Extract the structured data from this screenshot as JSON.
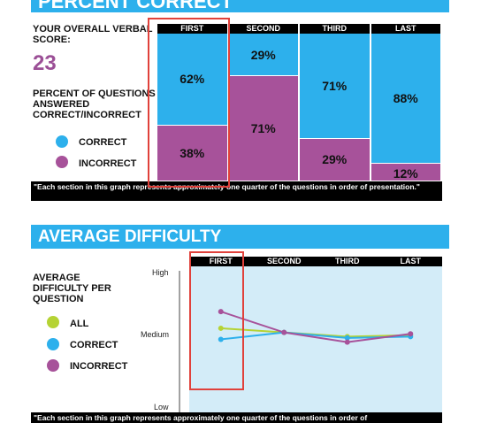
{
  "percent_correct": {
    "banner_title": "PERCENT CORRECT",
    "score_label": "YOUR OVERALL VERBAL SCORE:",
    "score_value": "23",
    "subtitle": "PERCENT OF QUESTIONS ANSWERED CORRECT/INCORRECT",
    "legend": [
      {
        "label": "CORRECT",
        "color": "#2db0ec"
      },
      {
        "label": "INCORRECT",
        "color": "#a7529a"
      }
    ],
    "footnote": "\"Each section in this graph represents approximately one quarter of the questions in order of presentation.\""
  },
  "average_difficulty": {
    "banner_title": "AVERAGE DIFFICULTY",
    "subtitle": "AVERAGE DIFFICULTY PER QUESTION",
    "legend": [
      {
        "label": "ALL",
        "color": "#b5d334"
      },
      {
        "label": "CORRECT",
        "color": "#2db0ec"
      },
      {
        "label": "INCORRECT",
        "color": "#a7529a"
      }
    ],
    "footnote": "\"Each section in this graph represents approximately one quarter of the questions in order of"
  },
  "chart_data": [
    {
      "type": "bar",
      "stacked": true,
      "categories": [
        "FIRST",
        "SECOND",
        "THIRD",
        "LAST"
      ],
      "series": [
        {
          "name": "CORRECT",
          "color": "#2db0ec",
          "values": [
            62,
            29,
            71,
            88
          ],
          "labels": [
            "62%",
            "29%",
            "71%",
            "88%"
          ]
        },
        {
          "name": "INCORRECT",
          "color": "#a7529a",
          "values": [
            38,
            71,
            29,
            12
          ],
          "labels": [
            "38%",
            "71%",
            "29%",
            "12%"
          ]
        }
      ],
      "ylim": [
        0,
        100
      ]
    },
    {
      "type": "line",
      "categories": [
        "FIRST",
        "SECOND",
        "THIRD",
        "LAST"
      ],
      "y_tick_labels": [
        "High",
        "Medium",
        "Low"
      ],
      "grid": false,
      "series": [
        {
          "name": "ALL",
          "color": "#b5d334",
          "values": [
            0.58,
            0.55,
            0.52,
            0.53
          ]
        },
        {
          "name": "CORRECT",
          "color": "#2db0ec",
          "values": [
            0.5,
            0.55,
            0.51,
            0.52
          ]
        },
        {
          "name": "INCORRECT",
          "color": "#a7529a",
          "values": [
            0.7,
            0.55,
            0.48,
            0.54
          ]
        }
      ],
      "ylim": [
        0,
        1
      ]
    }
  ]
}
